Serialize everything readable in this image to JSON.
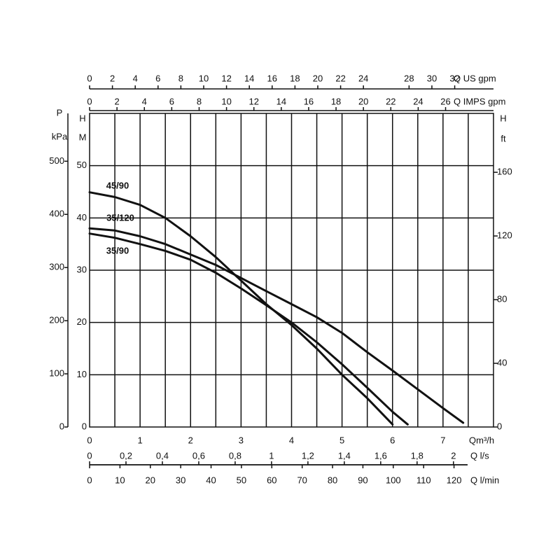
{
  "chart_data": {
    "type": "line",
    "x_label": "Qm³/h",
    "xlim": [
      0,
      8
    ],
    "xticks": [
      0,
      1,
      2,
      3,
      4,
      5,
      6,
      7
    ],
    "y_label_top": "H",
    "y_label": "M",
    "ylim": [
      0,
      60
    ],
    "yticks": [
      0,
      10,
      20,
      30,
      40,
      50
    ],
    "grid": true,
    "color": "#111111",
    "top_axes": [
      {
        "label": "Q US gpm",
        "xlim": [
          0,
          35.4
        ],
        "xticks": [
          0,
          2,
          4,
          6,
          8,
          10,
          12,
          14,
          16,
          18,
          20,
          22,
          24,
          28,
          30,
          32
        ]
      },
      {
        "label": "Q IMPS gpm",
        "xlim": [
          0,
          29.5
        ],
        "xticks": [
          0,
          2,
          4,
          6,
          8,
          10,
          12,
          14,
          16,
          18,
          20,
          22,
          24,
          26
        ]
      }
    ],
    "bottom_axes": [
      {
        "label": "Q l/s",
        "xlim": [
          0,
          2.22
        ],
        "xticks": [
          0,
          {
            "value": 0.2,
            "label": "0,2"
          },
          {
            "value": 0.4,
            "label": "0,4"
          },
          {
            "value": 0.6,
            "label": "0,6"
          },
          {
            "value": 0.8,
            "label": "0,8"
          },
          1,
          {
            "value": 1.2,
            "label": "1,2"
          },
          {
            "value": 1.4,
            "label": "1,4"
          },
          {
            "value": 1.6,
            "label": "1,6"
          },
          {
            "value": 1.8,
            "label": "1,8"
          },
          2
        ]
      },
      {
        "label": "Q l/min",
        "xlim": [
          0,
          133
        ],
        "xticks": [
          0,
          10,
          20,
          30,
          40,
          50,
          60,
          70,
          80,
          90,
          100,
          110,
          120
        ]
      }
    ],
    "left_axis": {
      "label_top": "P",
      "label": "kPa",
      "ylim": [
        0,
        590
      ],
      "yticks": [
        0,
        100,
        200,
        300,
        400,
        500
      ]
    },
    "right_axis": {
      "label_top": "H",
      "label": "ft",
      "ylim": [
        0,
        197
      ],
      "yticks": [
        0,
        40,
        80,
        120,
        160
      ]
    },
    "series": [
      {
        "name": "45/90",
        "x": [
          0,
          0.5,
          1,
          1.5,
          2,
          2.5,
          3,
          3.5,
          4,
          4.5,
          5,
          5.5,
          6
        ],
        "values": [
          44.9,
          44,
          42.5,
          40,
          36.5,
          32.5,
          28,
          23.5,
          19.5,
          15,
          10,
          5.5,
          0.5
        ]
      },
      {
        "name": "35/120",
        "x": [
          0,
          0.5,
          1,
          1.5,
          2,
          2.5,
          3,
          3.5,
          4,
          4.5,
          5,
          5.5,
          6,
          6.5,
          7,
          7.4
        ],
        "values": [
          38,
          37.6,
          36.5,
          35,
          33,
          31,
          28.5,
          26,
          23.5,
          21,
          18,
          14.3,
          10.8,
          7.2,
          3.6,
          0.8
        ]
      },
      {
        "name": "35/90",
        "x": [
          0,
          0.5,
          1,
          1.5,
          2,
          2.5,
          3,
          3.5,
          4,
          4.5,
          5,
          5.5,
          6,
          6.3
        ],
        "values": [
          37,
          36.2,
          35,
          33.7,
          32,
          29.5,
          26.5,
          23.3,
          20,
          16.2,
          12,
          7.5,
          2.9,
          0.5
        ]
      }
    ]
  }
}
